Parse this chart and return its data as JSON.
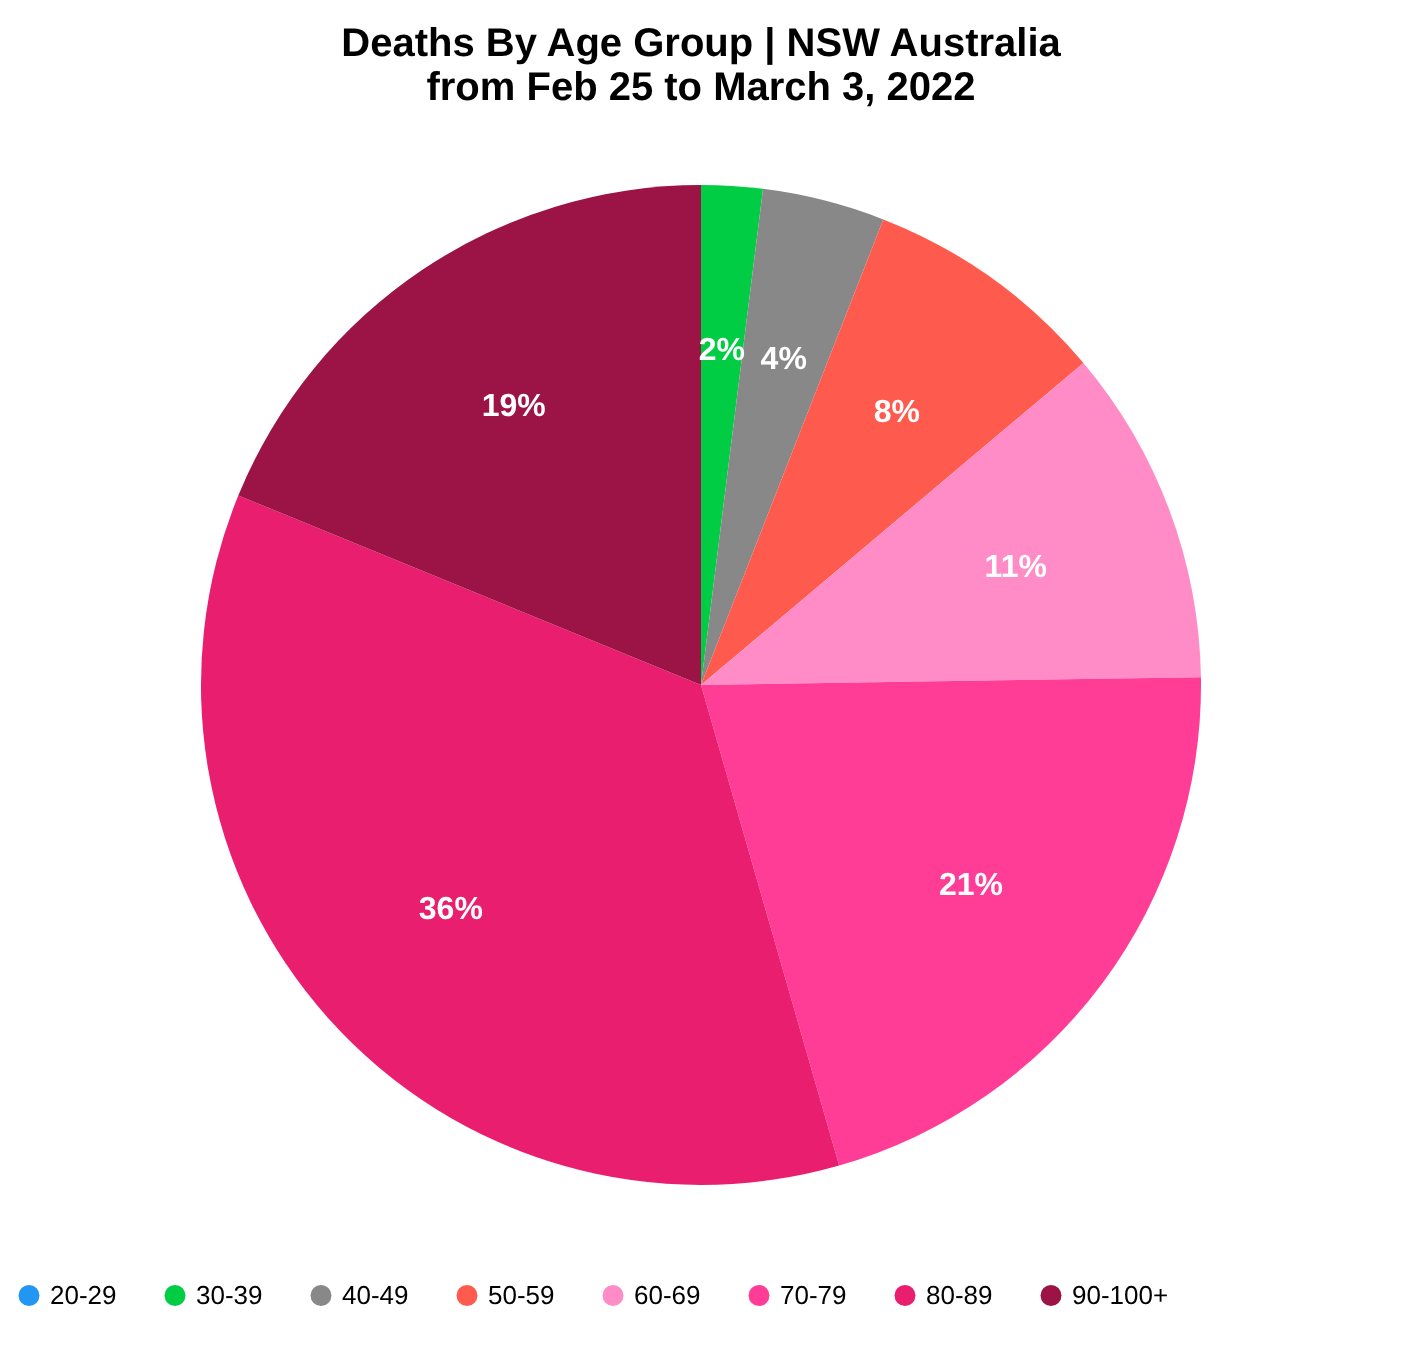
{
  "chart_data": {
    "type": "pie",
    "title": "Deaths By Age Group | NSW Australia",
    "subtitle": "from Feb 25 to March 3, 2022",
    "categories": [
      "20-29",
      "30-39",
      "40-49",
      "50-59",
      "60-69",
      "70-79",
      "80-89",
      "90-100+"
    ],
    "values": [
      0,
      2,
      4,
      8,
      11,
      21,
      36,
      19
    ],
    "colors": [
      "#2196f3",
      "#00cc44",
      "#888888",
      "#ff5a4e",
      "#ff8cc6",
      "#ff3d96",
      "#e91e6e",
      "#9c1346"
    ],
    "value_labels": [
      null,
      "2%",
      "4%",
      "8%",
      "11%",
      "21%",
      "36%",
      "19%"
    ],
    "legend": "bottom"
  }
}
